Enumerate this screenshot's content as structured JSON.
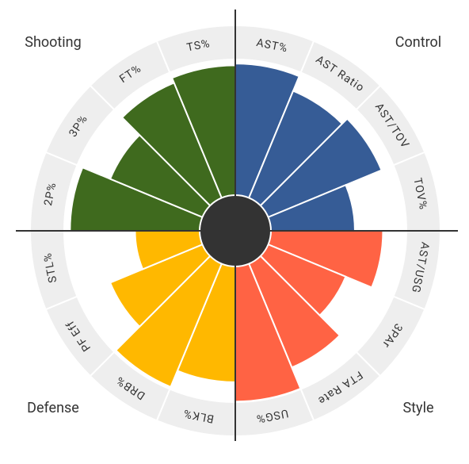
{
  "chart_data": {
    "type": "radial_bar",
    "ylim": [
      0,
      100
    ],
    "series": [
      {
        "name": "Control",
        "color": "#365c96",
        "categories": [
          "AST%",
          "AST Ratio",
          "AST/TOV",
          "TOV%"
        ],
        "values": [
          95,
          86,
          90,
          68
        ]
      },
      {
        "name": "Style",
        "color": "#ff6344",
        "categories": [
          "AST/USG",
          "3PAr",
          "FTA Rate",
          "USG%"
        ],
        "values": [
          84,
          68,
          84,
          97
        ]
      },
      {
        "name": "Defense",
        "color": "#ffb800",
        "categories": [
          "BLK%",
          "DRB%",
          "PF Eff",
          "STL%"
        ],
        "values": [
          86,
          96,
          77,
          57
        ]
      },
      {
        "name": "Shooting",
        "color": "#3f6a1e",
        "categories": [
          "2P%",
          "3P%",
          "FT%",
          "TS%"
        ],
        "values": [
          94,
          77,
          91,
          94
        ]
      }
    ]
  }
}
